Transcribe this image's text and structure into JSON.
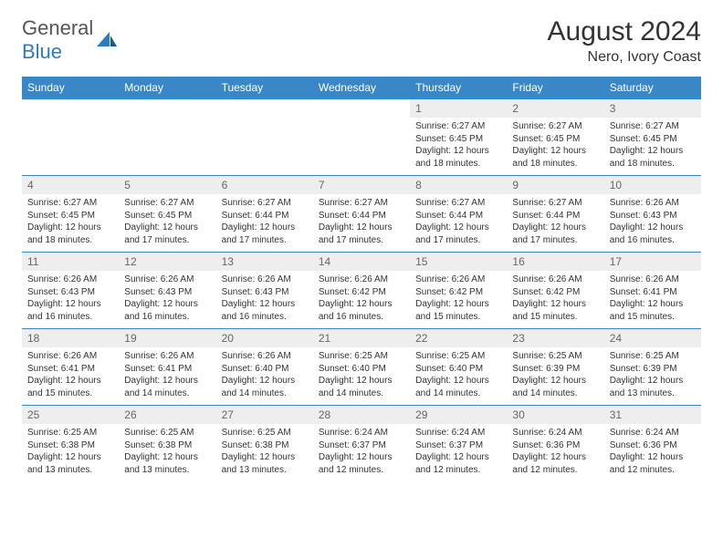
{
  "logo": {
    "text1": "General",
    "text2": "Blue"
  },
  "title": "August 2024",
  "location": "Nero, Ivory Coast",
  "colors": {
    "header_bg": "#3a87c8",
    "header_text": "#ffffff",
    "daynum_bg": "#eeeeee",
    "daynum_text": "#666666",
    "body_text": "#333333",
    "border": "#3a87c8",
    "logo_gray": "#555555",
    "logo_blue": "#2f7bbf"
  },
  "day_headers": [
    "Sunday",
    "Monday",
    "Tuesday",
    "Wednesday",
    "Thursday",
    "Friday",
    "Saturday"
  ],
  "weeks": [
    [
      {
        "empty": true
      },
      {
        "empty": true
      },
      {
        "empty": true
      },
      {
        "empty": true
      },
      {
        "num": "1",
        "sunrise": "Sunrise: 6:27 AM",
        "sunset": "Sunset: 6:45 PM",
        "daylight": "Daylight: 12 hours and 18 minutes."
      },
      {
        "num": "2",
        "sunrise": "Sunrise: 6:27 AM",
        "sunset": "Sunset: 6:45 PM",
        "daylight": "Daylight: 12 hours and 18 minutes."
      },
      {
        "num": "3",
        "sunrise": "Sunrise: 6:27 AM",
        "sunset": "Sunset: 6:45 PM",
        "daylight": "Daylight: 12 hours and 18 minutes."
      }
    ],
    [
      {
        "num": "4",
        "sunrise": "Sunrise: 6:27 AM",
        "sunset": "Sunset: 6:45 PM",
        "daylight": "Daylight: 12 hours and 18 minutes."
      },
      {
        "num": "5",
        "sunrise": "Sunrise: 6:27 AM",
        "sunset": "Sunset: 6:45 PM",
        "daylight": "Daylight: 12 hours and 17 minutes."
      },
      {
        "num": "6",
        "sunrise": "Sunrise: 6:27 AM",
        "sunset": "Sunset: 6:44 PM",
        "daylight": "Daylight: 12 hours and 17 minutes."
      },
      {
        "num": "7",
        "sunrise": "Sunrise: 6:27 AM",
        "sunset": "Sunset: 6:44 PM",
        "daylight": "Daylight: 12 hours and 17 minutes."
      },
      {
        "num": "8",
        "sunrise": "Sunrise: 6:27 AM",
        "sunset": "Sunset: 6:44 PM",
        "daylight": "Daylight: 12 hours and 17 minutes."
      },
      {
        "num": "9",
        "sunrise": "Sunrise: 6:27 AM",
        "sunset": "Sunset: 6:44 PM",
        "daylight": "Daylight: 12 hours and 17 minutes."
      },
      {
        "num": "10",
        "sunrise": "Sunrise: 6:26 AM",
        "sunset": "Sunset: 6:43 PM",
        "daylight": "Daylight: 12 hours and 16 minutes."
      }
    ],
    [
      {
        "num": "11",
        "sunrise": "Sunrise: 6:26 AM",
        "sunset": "Sunset: 6:43 PM",
        "daylight": "Daylight: 12 hours and 16 minutes."
      },
      {
        "num": "12",
        "sunrise": "Sunrise: 6:26 AM",
        "sunset": "Sunset: 6:43 PM",
        "daylight": "Daylight: 12 hours and 16 minutes."
      },
      {
        "num": "13",
        "sunrise": "Sunrise: 6:26 AM",
        "sunset": "Sunset: 6:43 PM",
        "daylight": "Daylight: 12 hours and 16 minutes."
      },
      {
        "num": "14",
        "sunrise": "Sunrise: 6:26 AM",
        "sunset": "Sunset: 6:42 PM",
        "daylight": "Daylight: 12 hours and 16 minutes."
      },
      {
        "num": "15",
        "sunrise": "Sunrise: 6:26 AM",
        "sunset": "Sunset: 6:42 PM",
        "daylight": "Daylight: 12 hours and 15 minutes."
      },
      {
        "num": "16",
        "sunrise": "Sunrise: 6:26 AM",
        "sunset": "Sunset: 6:42 PM",
        "daylight": "Daylight: 12 hours and 15 minutes."
      },
      {
        "num": "17",
        "sunrise": "Sunrise: 6:26 AM",
        "sunset": "Sunset: 6:41 PM",
        "daylight": "Daylight: 12 hours and 15 minutes."
      }
    ],
    [
      {
        "num": "18",
        "sunrise": "Sunrise: 6:26 AM",
        "sunset": "Sunset: 6:41 PM",
        "daylight": "Daylight: 12 hours and 15 minutes."
      },
      {
        "num": "19",
        "sunrise": "Sunrise: 6:26 AM",
        "sunset": "Sunset: 6:41 PM",
        "daylight": "Daylight: 12 hours and 14 minutes."
      },
      {
        "num": "20",
        "sunrise": "Sunrise: 6:26 AM",
        "sunset": "Sunset: 6:40 PM",
        "daylight": "Daylight: 12 hours and 14 minutes."
      },
      {
        "num": "21",
        "sunrise": "Sunrise: 6:25 AM",
        "sunset": "Sunset: 6:40 PM",
        "daylight": "Daylight: 12 hours and 14 minutes."
      },
      {
        "num": "22",
        "sunrise": "Sunrise: 6:25 AM",
        "sunset": "Sunset: 6:40 PM",
        "daylight": "Daylight: 12 hours and 14 minutes."
      },
      {
        "num": "23",
        "sunrise": "Sunrise: 6:25 AM",
        "sunset": "Sunset: 6:39 PM",
        "daylight": "Daylight: 12 hours and 14 minutes."
      },
      {
        "num": "24",
        "sunrise": "Sunrise: 6:25 AM",
        "sunset": "Sunset: 6:39 PM",
        "daylight": "Daylight: 12 hours and 13 minutes."
      }
    ],
    [
      {
        "num": "25",
        "sunrise": "Sunrise: 6:25 AM",
        "sunset": "Sunset: 6:38 PM",
        "daylight": "Daylight: 12 hours and 13 minutes."
      },
      {
        "num": "26",
        "sunrise": "Sunrise: 6:25 AM",
        "sunset": "Sunset: 6:38 PM",
        "daylight": "Daylight: 12 hours and 13 minutes."
      },
      {
        "num": "27",
        "sunrise": "Sunrise: 6:25 AM",
        "sunset": "Sunset: 6:38 PM",
        "daylight": "Daylight: 12 hours and 13 minutes."
      },
      {
        "num": "28",
        "sunrise": "Sunrise: 6:24 AM",
        "sunset": "Sunset: 6:37 PM",
        "daylight": "Daylight: 12 hours and 12 minutes."
      },
      {
        "num": "29",
        "sunrise": "Sunrise: 6:24 AM",
        "sunset": "Sunset: 6:37 PM",
        "daylight": "Daylight: 12 hours and 12 minutes."
      },
      {
        "num": "30",
        "sunrise": "Sunrise: 6:24 AM",
        "sunset": "Sunset: 6:36 PM",
        "daylight": "Daylight: 12 hours and 12 minutes."
      },
      {
        "num": "31",
        "sunrise": "Sunrise: 6:24 AM",
        "sunset": "Sunset: 6:36 PM",
        "daylight": "Daylight: 12 hours and 12 minutes."
      }
    ]
  ]
}
